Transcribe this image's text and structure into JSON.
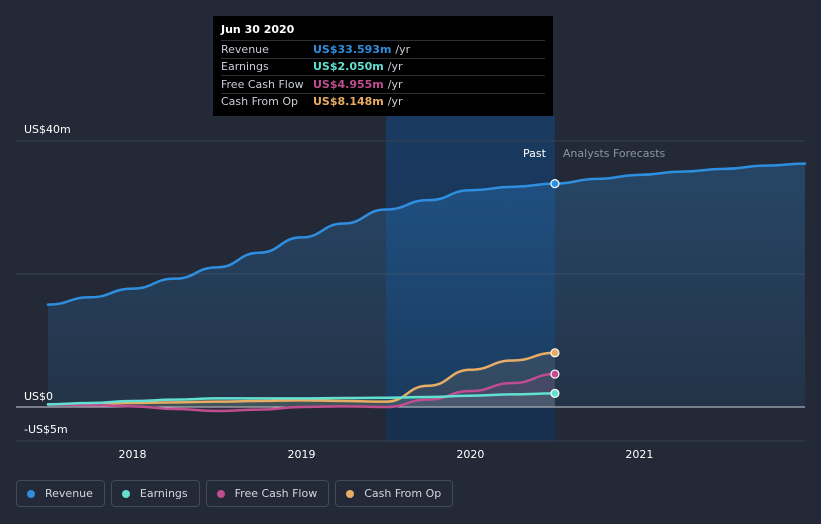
{
  "chart_data": {
    "type": "line",
    "title": "",
    "xlabel": "",
    "ylabel": "",
    "y_tick_labels": [
      "US$40m",
      "US$0",
      "-US$5m"
    ],
    "x_tick_labels": [
      "2018",
      "2019",
      "2020",
      "2021"
    ],
    "ylim": [
      -5,
      40
    ],
    "xlim": [
      2017.5,
      2021.98
    ],
    "past_label": "Past",
    "forecast_label": "Analysts Forecasts",
    "series": [
      {
        "name": "Revenue",
        "color": "#2e8fe0",
        "points": [
          [
            2017.5,
            15.4
          ],
          [
            2017.75,
            16.5
          ],
          [
            2018.0,
            17.8
          ],
          [
            2018.25,
            19.3
          ],
          [
            2018.5,
            21.0
          ],
          [
            2018.75,
            23.2
          ],
          [
            2019.0,
            25.5
          ],
          [
            2019.25,
            27.6
          ],
          [
            2019.5,
            29.7
          ],
          [
            2019.75,
            31.1
          ],
          [
            2020.0,
            32.6
          ],
          [
            2020.25,
            33.1
          ],
          [
            2020.5,
            33.593
          ]
        ],
        "forecast": [
          [
            2020.5,
            33.593
          ],
          [
            2020.75,
            34.3
          ],
          [
            2021.0,
            34.9
          ],
          [
            2021.25,
            35.4
          ],
          [
            2021.5,
            35.8
          ],
          [
            2021.75,
            36.3
          ],
          [
            2021.98,
            36.6
          ]
        ]
      },
      {
        "name": "Earnings",
        "color": "#62e0d1",
        "points": [
          [
            2017.5,
            0.4
          ],
          [
            2017.75,
            0.6
          ],
          [
            2018.0,
            0.9
          ],
          [
            2018.25,
            1.1
          ],
          [
            2018.5,
            1.3
          ],
          [
            2018.75,
            1.3
          ],
          [
            2019.0,
            1.3
          ],
          [
            2019.25,
            1.35
          ],
          [
            2019.5,
            1.4
          ],
          [
            2019.75,
            1.5
          ],
          [
            2020.0,
            1.7
          ],
          [
            2020.25,
            1.9
          ],
          [
            2020.5,
            2.05
          ]
        ]
      },
      {
        "name": "Free Cash Flow",
        "color": "#c04d8f",
        "points": [
          [
            2017.5,
            0.4
          ],
          [
            2017.75,
            0.3
          ],
          [
            2018.0,
            0.1
          ],
          [
            2018.25,
            -0.3
          ],
          [
            2018.5,
            -0.6
          ],
          [
            2018.75,
            -0.4
          ],
          [
            2019.0,
            0.0
          ],
          [
            2019.25,
            0.1
          ],
          [
            2019.5,
            0.0
          ],
          [
            2019.75,
            1.1
          ],
          [
            2020.0,
            2.4
          ],
          [
            2020.25,
            3.6
          ],
          [
            2020.5,
            4.955
          ]
        ]
      },
      {
        "name": "Cash From Op",
        "color": "#e8ad64",
        "points": [
          [
            2017.5,
            0.4
          ],
          [
            2017.75,
            0.5
          ],
          [
            2018.0,
            0.6
          ],
          [
            2018.25,
            0.7
          ],
          [
            2018.5,
            0.8
          ],
          [
            2018.75,
            0.9
          ],
          [
            2019.0,
            1.0
          ],
          [
            2019.25,
            0.9
          ],
          [
            2019.5,
            0.8
          ],
          [
            2019.75,
            3.2
          ],
          [
            2020.0,
            5.6
          ],
          [
            2020.25,
            7.0
          ],
          [
            2020.5,
            8.148
          ]
        ]
      }
    ],
    "highlight_range": [
      2019.5,
      2020.5
    ],
    "tooltip_date": "Jun 30 2020"
  },
  "tooltip": {
    "date": "Jun 30 2020",
    "rows": [
      {
        "label": "Revenue",
        "value": "US$33.593m",
        "unit": "/yr",
        "color": "#2e8fe0"
      },
      {
        "label": "Earnings",
        "value": "US$2.050m",
        "unit": "/yr",
        "color": "#62e0d1"
      },
      {
        "label": "Free Cash Flow",
        "value": "US$4.955m",
        "unit": "/yr",
        "color": "#c04d8f"
      },
      {
        "label": "Cash From Op",
        "value": "US$8.148m",
        "unit": "/yr",
        "color": "#e8ad64"
      }
    ]
  },
  "legend": [
    {
      "label": "Revenue",
      "color": "#2e8fe0"
    },
    {
      "label": "Earnings",
      "color": "#62e0d1"
    },
    {
      "label": "Free Cash Flow",
      "color": "#c04d8f"
    },
    {
      "label": "Cash From Op",
      "color": "#e8ad64"
    }
  ]
}
